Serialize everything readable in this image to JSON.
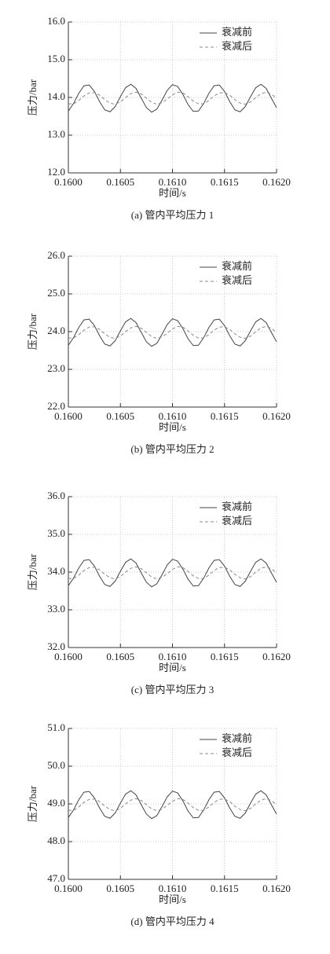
{
  "chart_data": [
    {
      "type": "line",
      "caption": "(a) 管内平均压力 1",
      "xlabel": "时间/s",
      "ylabel": "压力/bar",
      "x": [
        0.16,
        0.16005,
        0.1601,
        0.16015,
        0.1602,
        0.16025,
        0.1603,
        0.16035,
        0.1604,
        0.16045,
        0.1605,
        0.16055,
        0.1606,
        0.16065,
        0.1607,
        0.16075,
        0.1608,
        0.16085,
        0.1609,
        0.16095,
        0.161,
        0.16105,
        0.1611,
        0.16115,
        0.1612,
        0.16125,
        0.1613,
        0.16135,
        0.1614,
        0.16145,
        0.1615,
        0.16155,
        0.1616,
        0.16165,
        0.1617,
        0.16175,
        0.1618,
        0.16185,
        0.1619,
        0.16195,
        0.162
      ],
      "series": [
        {
          "name": "衰减前",
          "color": "#444444",
          "dashed": false,
          "values": [
            13.64,
            13.84,
            14.11,
            14.31,
            14.33,
            14.16,
            13.89,
            13.67,
            13.62,
            13.76,
            14.02,
            14.26,
            14.35,
            14.24,
            13.98,
            13.73,
            13.61,
            13.69,
            13.93,
            14.19,
            14.34,
            14.29,
            14.08,
            13.81,
            13.63,
            13.64,
            13.84,
            14.11,
            14.31,
            14.33,
            14.16,
            13.89,
            13.67,
            13.62,
            13.76,
            14.02,
            14.26,
            14.35,
            14.24,
            13.98,
            13.73
          ]
        },
        {
          "name": "衰减后",
          "color": "#888888",
          "dashed": true,
          "values": [
            13.83,
            13.83,
            13.92,
            14.04,
            14.12,
            14.13,
            14.06,
            13.94,
            13.85,
            13.82,
            13.88,
            14.0,
            14.1,
            14.14,
            14.09,
            13.98,
            13.87,
            13.82,
            13.86,
            13.96,
            14.07,
            14.14,
            14.12,
            14.02,
            13.9,
            13.83,
            13.83,
            13.92,
            14.04,
            14.12,
            14.13,
            14.06,
            13.94,
            13.85,
            13.82,
            13.88,
            14.0,
            14.1,
            14.14,
            14.09,
            13.98
          ]
        }
      ],
      "xlim": [
        0.16,
        0.162
      ],
      "xticks": [
        {
          "value": 0.16,
          "label": "0.1600"
        },
        {
          "value": 0.1605,
          "label": "0.1605"
        },
        {
          "value": 0.161,
          "label": "0.1610"
        },
        {
          "value": 0.1615,
          "label": "0.1615"
        },
        {
          "value": 0.162,
          "label": "0.1620"
        }
      ],
      "ylim": [
        12,
        16
      ],
      "yticks": [
        {
          "value": 12,
          "label": "12.0"
        },
        {
          "value": 13,
          "label": "13.0"
        },
        {
          "value": 14,
          "label": "14.0"
        },
        {
          "value": 15,
          "label": "15.0"
        },
        {
          "value": 16,
          "label": "16.0"
        }
      ],
      "grid": true,
      "legend": "upper right"
    },
    {
      "type": "line",
      "caption": "(b) 管内平均压力 2",
      "xlabel": "时间/s",
      "ylabel": "压力/bar",
      "x": [
        0.16,
        0.16005,
        0.1601,
        0.16015,
        0.1602,
        0.16025,
        0.1603,
        0.16035,
        0.1604,
        0.16045,
        0.1605,
        0.16055,
        0.1606,
        0.16065,
        0.1607,
        0.16075,
        0.1608,
        0.16085,
        0.1609,
        0.16095,
        0.161,
        0.16105,
        0.1611,
        0.16115,
        0.1612,
        0.16125,
        0.1613,
        0.16135,
        0.1614,
        0.16145,
        0.1615,
        0.16155,
        0.1616,
        0.16165,
        0.1617,
        0.16175,
        0.1618,
        0.16185,
        0.1619,
        0.16195,
        0.162
      ],
      "series": [
        {
          "name": "衰减前",
          "color": "#444444",
          "dashed": false,
          "values": [
            23.64,
            23.84,
            24.11,
            24.31,
            24.33,
            24.16,
            23.89,
            23.67,
            23.62,
            23.76,
            24.02,
            24.26,
            24.35,
            24.24,
            23.98,
            23.73,
            23.61,
            23.69,
            23.93,
            24.19,
            24.34,
            24.29,
            24.08,
            23.81,
            23.63,
            23.64,
            23.84,
            24.11,
            24.31,
            24.33,
            24.16,
            23.89,
            23.67,
            23.62,
            23.76,
            24.02,
            24.26,
            24.35,
            24.24,
            23.98,
            23.73
          ]
        },
        {
          "name": "衰减后",
          "color": "#888888",
          "dashed": true,
          "values": [
            23.83,
            23.83,
            23.92,
            24.04,
            24.12,
            24.13,
            24.06,
            23.94,
            23.85,
            23.82,
            23.88,
            24.0,
            24.1,
            24.14,
            24.09,
            23.98,
            23.87,
            23.82,
            23.86,
            23.96,
            24.07,
            24.14,
            24.12,
            24.02,
            23.9,
            23.83,
            23.83,
            23.92,
            24.04,
            24.12,
            24.13,
            24.06,
            23.94,
            23.85,
            23.82,
            23.88,
            24.0,
            24.1,
            24.14,
            24.09,
            23.98
          ]
        }
      ],
      "xlim": [
        0.16,
        0.162
      ],
      "xticks": [
        {
          "value": 0.16,
          "label": "0.1600"
        },
        {
          "value": 0.1605,
          "label": "0.1605"
        },
        {
          "value": 0.161,
          "label": "0.1610"
        },
        {
          "value": 0.1615,
          "label": "0.1615"
        },
        {
          "value": 0.162,
          "label": "0.1620"
        }
      ],
      "ylim": [
        22,
        26
      ],
      "yticks": [
        {
          "value": 22,
          "label": "22.0"
        },
        {
          "value": 23,
          "label": "23.0"
        },
        {
          "value": 24,
          "label": "24.0"
        },
        {
          "value": 25,
          "label": "25.0"
        },
        {
          "value": 26,
          "label": "26.0"
        }
      ],
      "grid": true,
      "legend": "upper right"
    },
    {
      "type": "line",
      "caption": "(c) 管内平均压力 3",
      "xlabel": "时间/s",
      "ylabel": "压力/bar",
      "x": [
        0.16,
        0.16005,
        0.1601,
        0.16015,
        0.1602,
        0.16025,
        0.1603,
        0.16035,
        0.1604,
        0.16045,
        0.1605,
        0.16055,
        0.1606,
        0.16065,
        0.1607,
        0.16075,
        0.1608,
        0.16085,
        0.1609,
        0.16095,
        0.161,
        0.16105,
        0.1611,
        0.16115,
        0.1612,
        0.16125,
        0.1613,
        0.16135,
        0.1614,
        0.16145,
        0.1615,
        0.16155,
        0.1616,
        0.16165,
        0.1617,
        0.16175,
        0.1618,
        0.16185,
        0.1619,
        0.16195,
        0.162
      ],
      "series": [
        {
          "name": "衰减前",
          "color": "#444444",
          "dashed": false,
          "values": [
            33.64,
            33.84,
            34.11,
            34.31,
            34.33,
            34.16,
            33.89,
            33.67,
            33.62,
            33.76,
            34.02,
            34.26,
            34.35,
            34.24,
            33.98,
            33.73,
            33.61,
            33.69,
            33.93,
            34.19,
            34.34,
            34.29,
            34.08,
            33.81,
            33.63,
            33.64,
            33.84,
            34.11,
            34.31,
            34.33,
            34.16,
            33.89,
            33.67,
            33.62,
            33.76,
            34.02,
            34.26,
            34.35,
            34.24,
            33.98,
            33.73
          ]
        },
        {
          "name": "衰减后",
          "color": "#888888",
          "dashed": true,
          "values": [
            33.83,
            33.83,
            33.92,
            34.04,
            34.12,
            34.13,
            34.06,
            33.94,
            33.85,
            33.82,
            33.88,
            34.0,
            34.1,
            34.14,
            34.09,
            33.98,
            33.87,
            33.82,
            33.86,
            33.96,
            34.07,
            34.14,
            34.12,
            34.02,
            33.9,
            33.83,
            33.83,
            33.92,
            34.04,
            34.12,
            34.13,
            34.06,
            33.94,
            33.85,
            33.82,
            33.88,
            34.0,
            34.1,
            34.14,
            34.09,
            33.98
          ]
        }
      ],
      "xlim": [
        0.16,
        0.162
      ],
      "xticks": [
        {
          "value": 0.16,
          "label": "0.1600"
        },
        {
          "value": 0.1605,
          "label": "0.1605"
        },
        {
          "value": 0.161,
          "label": "0.1610"
        },
        {
          "value": 0.1615,
          "label": "0.1615"
        },
        {
          "value": 0.162,
          "label": "0.1620"
        }
      ],
      "ylim": [
        32,
        36
      ],
      "yticks": [
        {
          "value": 32,
          "label": "32.0"
        },
        {
          "value": 33,
          "label": "33.0"
        },
        {
          "value": 34,
          "label": "34.0"
        },
        {
          "value": 35,
          "label": "35.0"
        },
        {
          "value": 36,
          "label": "36.0"
        }
      ],
      "grid": true,
      "legend": "upper right"
    },
    {
      "type": "line",
      "caption": "(d) 管内平均压力 4",
      "xlabel": "时间/s",
      "ylabel": "压力/bar",
      "x": [
        0.16,
        0.16005,
        0.1601,
        0.16015,
        0.1602,
        0.16025,
        0.1603,
        0.16035,
        0.1604,
        0.16045,
        0.1605,
        0.16055,
        0.1606,
        0.16065,
        0.1607,
        0.16075,
        0.1608,
        0.16085,
        0.1609,
        0.16095,
        0.161,
        0.16105,
        0.1611,
        0.16115,
        0.1612,
        0.16125,
        0.1613,
        0.16135,
        0.1614,
        0.16145,
        0.1615,
        0.16155,
        0.1616,
        0.16165,
        0.1617,
        0.16175,
        0.1618,
        0.16185,
        0.1619,
        0.16195,
        0.162
      ],
      "series": [
        {
          "name": "衰减前",
          "color": "#444444",
          "dashed": false,
          "values": [
            48.64,
            48.84,
            49.11,
            49.31,
            49.33,
            49.16,
            48.89,
            48.67,
            48.62,
            48.76,
            49.02,
            49.26,
            49.35,
            49.24,
            48.98,
            48.73,
            48.61,
            48.69,
            48.93,
            49.19,
            49.34,
            49.29,
            49.08,
            48.81,
            48.63,
            48.64,
            48.84,
            49.11,
            49.31,
            49.33,
            49.16,
            48.89,
            48.67,
            48.62,
            48.76,
            49.02,
            49.26,
            49.35,
            49.24,
            48.98,
            48.73
          ]
        },
        {
          "name": "衰减后",
          "color": "#888888",
          "dashed": true,
          "values": [
            48.83,
            48.83,
            48.92,
            49.04,
            49.12,
            49.13,
            49.06,
            48.94,
            48.85,
            48.82,
            48.88,
            49.0,
            49.1,
            49.14,
            49.09,
            48.98,
            48.87,
            48.82,
            48.86,
            48.96,
            49.07,
            49.14,
            49.12,
            49.02,
            48.9,
            48.83,
            48.83,
            48.92,
            49.04,
            49.12,
            49.13,
            49.06,
            48.94,
            48.85,
            48.82,
            48.88,
            49.0,
            49.1,
            49.14,
            49.09,
            48.98
          ]
        }
      ],
      "xlim": [
        0.16,
        0.162
      ],
      "xticks": [
        {
          "value": 0.16,
          "label": "0.1600"
        },
        {
          "value": 0.1605,
          "label": "0.1605"
        },
        {
          "value": 0.161,
          "label": "0.1610"
        },
        {
          "value": 0.1615,
          "label": "0.1615"
        },
        {
          "value": 0.162,
          "label": "0.1620"
        }
      ],
      "ylim": [
        47,
        51
      ],
      "yticks": [
        {
          "value": 47,
          "label": "47.0"
        },
        {
          "value": 48,
          "label": "48.0"
        },
        {
          "value": 49,
          "label": "49.0"
        },
        {
          "value": 50,
          "label": "50.0"
        },
        {
          "value": 51,
          "label": "51.0"
        }
      ],
      "grid": true,
      "legend": "upper right"
    }
  ]
}
